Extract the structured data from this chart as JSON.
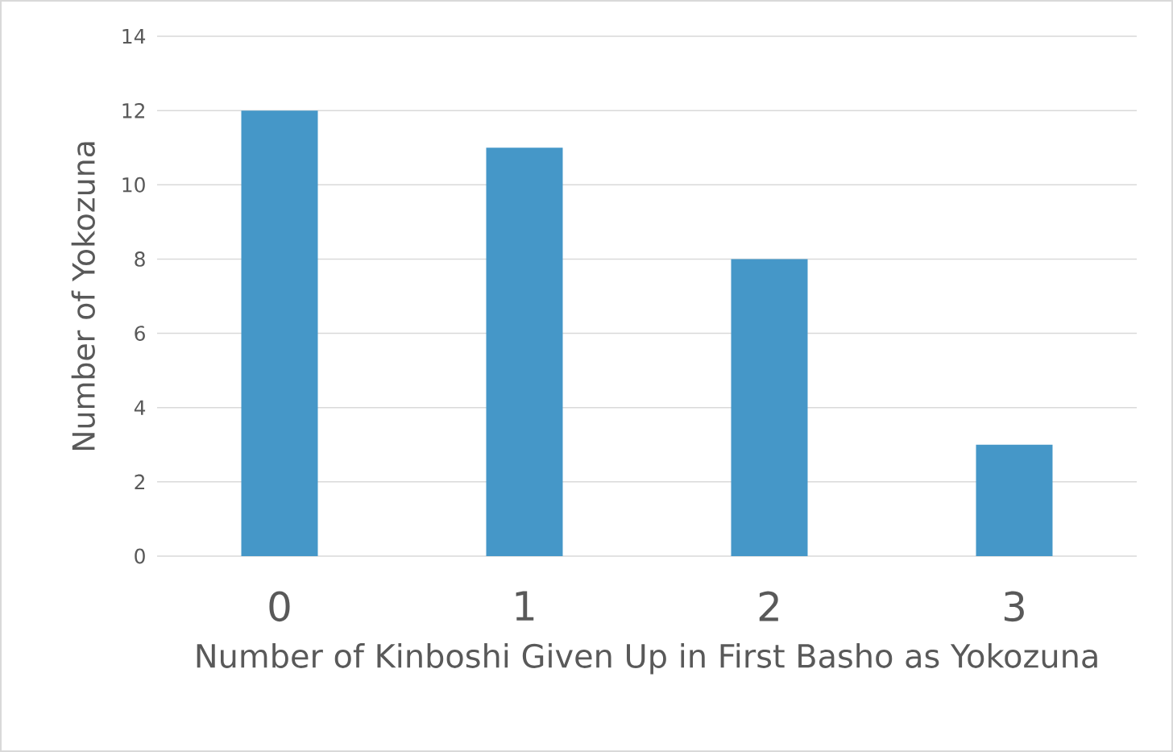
{
  "chart_data": {
    "type": "bar",
    "xlabel": "Number of Kinboshi Given Up in First Basho as Yokozuna",
    "ylabel": "Number of Yokozuna",
    "categories": [
      "0",
      "1",
      "2",
      "3"
    ],
    "values": [
      12,
      11,
      8,
      3
    ],
    "color": "#4597c8",
    "ylim": [
      0,
      14
    ],
    "yticks": [
      0,
      2,
      4,
      6,
      8,
      10,
      12,
      14
    ],
    "grid": "y"
  }
}
